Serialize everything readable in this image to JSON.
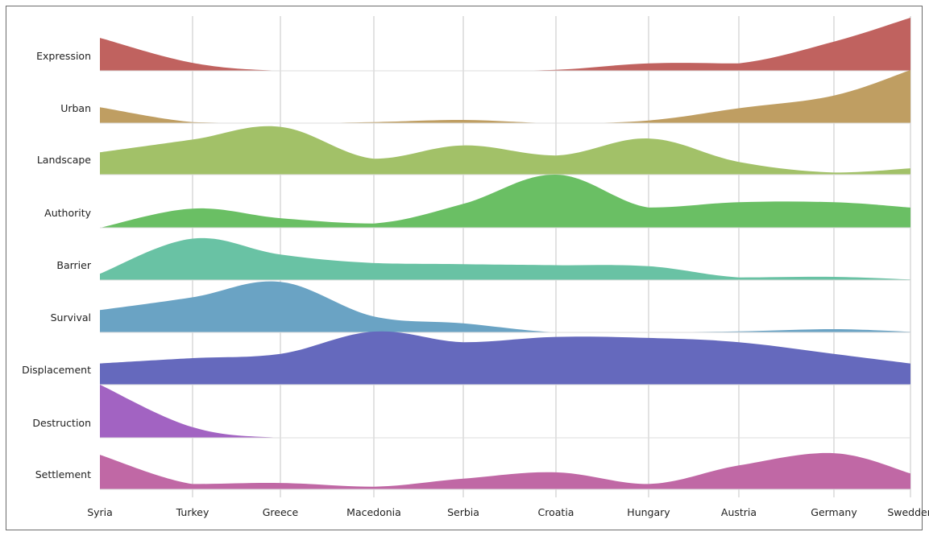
{
  "chart_data": {
    "type": "ridgeline",
    "x_labels": [
      "Syria",
      "Turkey",
      "Greece",
      "Macedonia",
      "Serbia",
      "Croatia",
      "Hungary",
      "Austria",
      "Germany",
      "Swedden"
    ],
    "grid": true,
    "legend": "none",
    "y_scale_note": "relative frequency per theme (0-1, unlabeled)",
    "series": [
      {
        "name": "Expression",
        "color": "#c0625f",
        "values": [
          0.62,
          0.15,
          0.0,
          0.0,
          0.0,
          0.02,
          0.14,
          0.14,
          0.55,
          1.0
        ]
      },
      {
        "name": "Urban",
        "color": "#bf9e62",
        "values": [
          0.3,
          0.02,
          0.0,
          0.02,
          0.06,
          0.0,
          0.05,
          0.28,
          0.52,
          1.0
        ]
      },
      {
        "name": "Landscape",
        "color": "#a2c168",
        "values": [
          0.42,
          0.66,
          0.9,
          0.3,
          0.55,
          0.36,
          0.68,
          0.24,
          0.04,
          0.12
        ]
      },
      {
        "name": "Authority",
        "color": "#6abf64",
        "values": [
          0.0,
          0.36,
          0.18,
          0.08,
          0.45,
          1.0,
          0.38,
          0.48,
          0.48,
          0.38
        ]
      },
      {
        "name": "Barrier",
        "color": "#69c2a4",
        "values": [
          0.12,
          0.78,
          0.48,
          0.32,
          0.3,
          0.28,
          0.26,
          0.05,
          0.06,
          0.01
        ]
      },
      {
        "name": "Survival",
        "color": "#6aa3c4",
        "values": [
          0.42,
          0.66,
          0.95,
          0.3,
          0.17,
          0.0,
          0.0,
          0.02,
          0.06,
          0.01
        ]
      },
      {
        "name": "Displacement",
        "color": "#6569bd",
        "values": [
          0.4,
          0.5,
          0.58,
          1.0,
          0.8,
          0.9,
          0.88,
          0.8,
          0.58,
          0.4
        ]
      },
      {
        "name": "Destruction",
        "color": "#a263c2",
        "values": [
          1.0,
          0.2,
          0.0,
          0.0,
          0.0,
          0.0,
          0.0,
          0.0,
          0.0,
          0.0
        ]
      },
      {
        "name": "Settlement",
        "color": "#c068a5",
        "values": [
          0.65,
          0.1,
          0.12,
          0.05,
          0.2,
          0.32,
          0.1,
          0.45,
          0.68,
          0.3
        ]
      }
    ]
  }
}
